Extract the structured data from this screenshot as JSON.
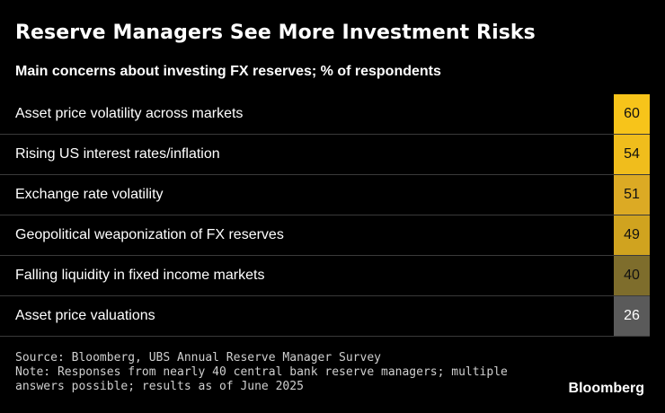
{
  "title": "Reserve Managers See More Investment Risks",
  "subtitle": "Main concerns about investing FX reserves; % of respondents",
  "chart_data": {
    "type": "table",
    "categories": [
      "Asset price volatility across markets",
      "Rising US interest rates/inflation",
      "Exchange rate volatility",
      "Geopolitical weaponization of FX reserves",
      "Falling liquidity in fixed income markets",
      "Asset price valuations"
    ],
    "values": [
      60,
      54,
      51,
      49,
      40,
      26
    ],
    "cell_colors": [
      "#f7c41a",
      "#f0bd1c",
      "#dcaa24",
      "#d0a31f",
      "#7e6d2c",
      "#5a5a5a"
    ],
    "value_text_colors": [
      "#111111",
      "#111111",
      "#111111",
      "#111111",
      "#111111",
      "#ffffff"
    ],
    "row_divider_color": "#3a3a3a",
    "background": "#000000"
  },
  "footer": {
    "source": "Source: Bloomberg, UBS Annual Reserve Manager Survey",
    "note_line1": "Note: Responses from nearly 40 central bank reserve managers; multiple",
    "note_line2": "answers possible; results as of June 2025"
  },
  "brand": "Bloomberg"
}
